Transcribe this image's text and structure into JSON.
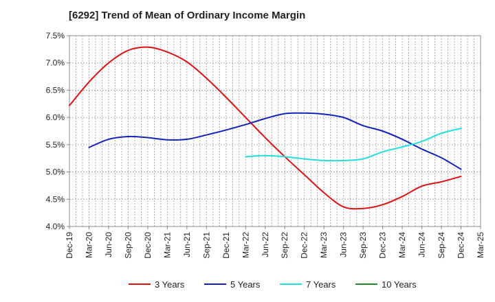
{
  "chart_data": {
    "type": "line",
    "title": "[6292]  Trend of Mean of Ordinary Income Margin",
    "xlabel": "",
    "ylabel": "",
    "x_ticks": [
      "Dec-19",
      "Mar-20",
      "Jun-20",
      "Sep-20",
      "Dec-20",
      "Mar-21",
      "Jun-21",
      "Sep-21",
      "Dec-21",
      "Mar-22",
      "Jun-22",
      "Sep-22",
      "Dec-22",
      "Mar-23",
      "Jun-23",
      "Sep-23",
      "Dec-23",
      "Mar-24",
      "Jun-24",
      "Sep-24",
      "Dec-24",
      "Mar-25"
    ],
    "y_ticks": [
      "4.0%",
      "4.5%",
      "5.0%",
      "5.5%",
      "6.0%",
      "6.5%",
      "7.0%",
      "7.5%"
    ],
    "ylim": [
      4.0,
      7.5
    ],
    "y_unit": "%",
    "grid": true,
    "legend_position": "bottom",
    "series": [
      {
        "name": "3 Years",
        "color": "#dd1111",
        "x": [
          "Dec-19",
          "Mar-20",
          "Jun-20",
          "Sep-20",
          "Dec-20",
          "Mar-21",
          "Jun-21",
          "Sep-21",
          "Dec-21",
          "Mar-22",
          "Jun-22",
          "Sep-22",
          "Dec-22",
          "Mar-23",
          "Jun-23",
          "Sep-23",
          "Dec-23",
          "Mar-24",
          "Jun-24",
          "Sep-24",
          "Dec-24"
        ],
        "values": [
          6.22,
          6.65,
          7.0,
          7.23,
          7.29,
          7.2,
          7.02,
          6.72,
          6.37,
          6.0,
          5.63,
          5.28,
          4.95,
          4.62,
          4.36,
          4.33,
          4.4,
          4.55,
          4.74,
          4.82,
          4.92
        ]
      },
      {
        "name": "5 Years",
        "color": "#1122bb",
        "x": [
          "Mar-20",
          "Jun-20",
          "Sep-20",
          "Dec-20",
          "Mar-21",
          "Jun-21",
          "Sep-21",
          "Dec-21",
          "Mar-22",
          "Jun-22",
          "Sep-22",
          "Dec-22",
          "Mar-23",
          "Jun-23",
          "Sep-23",
          "Dec-23",
          "Mar-24",
          "Jun-24",
          "Sep-24",
          "Dec-24"
        ],
        "values": [
          5.45,
          5.6,
          5.65,
          5.63,
          5.59,
          5.6,
          5.68,
          5.77,
          5.87,
          5.98,
          6.07,
          6.08,
          6.06,
          6.0,
          5.85,
          5.75,
          5.6,
          5.42,
          5.26,
          5.05
        ]
      },
      {
        "name": "7 Years",
        "color": "#22dddd",
        "x": [
          "Mar-22",
          "Jun-22",
          "Sep-22",
          "Dec-22",
          "Mar-23",
          "Jun-23",
          "Sep-23",
          "Dec-23",
          "Mar-24",
          "Jun-24",
          "Sep-24",
          "Dec-24"
        ],
        "values": [
          5.28,
          5.3,
          5.28,
          5.24,
          5.21,
          5.21,
          5.24,
          5.37,
          5.46,
          5.56,
          5.71,
          5.8
        ]
      },
      {
        "name": "10 Years",
        "color": "#228822",
        "x": [],
        "values": []
      }
    ]
  }
}
